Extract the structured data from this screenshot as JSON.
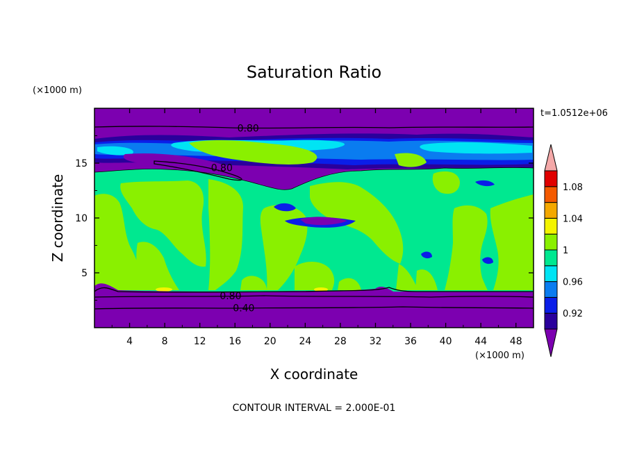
{
  "chart_data": {
    "type": "heatmap",
    "title": "Saturation Ratio",
    "xlabel": "X coordinate",
    "ylabel": "Z coordinate",
    "x_unit": "(×1000 m)",
    "y_unit": "(×1000 m)",
    "time_label": "t=1.0512e+06",
    "footer": "CONTOUR INTERVAL = 2.000E-01",
    "xlim": [
      0,
      50
    ],
    "ylim": [
      0,
      20
    ],
    "x_ticks": [
      4,
      8,
      12,
      16,
      20,
      24,
      28,
      32,
      36,
      40,
      44,
      48
    ],
    "y_ticks": [
      5,
      10,
      15
    ],
    "contour_labels": [
      {
        "text": "0.80",
        "x": 17.5,
        "y": 18.2
      },
      {
        "text": "0.80",
        "x": 14.5,
        "y": 14.6
      },
      {
        "text": "0.80",
        "x": 15.5,
        "y": 2.9
      },
      {
        "text": "0.40",
        "x": 17.0,
        "y": 1.8
      }
    ],
    "colorbar": {
      "levels": [
        0.92,
        0.96,
        1,
        1.04,
        1.08
      ],
      "tick_labels": [
        "0.92",
        "0.96",
        "1",
        "1.04",
        "1.08"
      ],
      "colors": [
        "#7c00b0",
        "#2a009c",
        "#0a1ee8",
        "#0a7cf0",
        "#00e4f4",
        "#00e890",
        "#8af000",
        "#f4f400",
        "#f4a800",
        "#f45a00",
        "#e00000",
        "#f4a8a8"
      ],
      "under_color": "#7c00b0",
      "over_color": "#f4a8a8"
    },
    "regions": {
      "background_color": "#7c00b0",
      "main_value_range": [
        0.96,
        1.0
      ],
      "main_color": "#00e890",
      "patch_color": "#8af000",
      "dry_low_layer_top": 3.3,
      "dry_high_layer_bottom": 18.0
    }
  }
}
